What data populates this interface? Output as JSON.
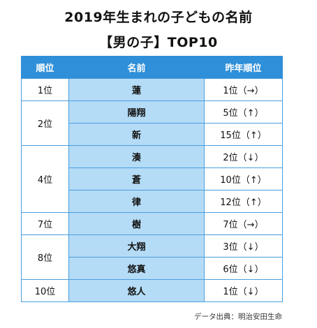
{
  "title_line1": "2019年生まれの子どもの名前",
  "title_line2": "【男の子】TOP10",
  "headers": {
    "rank": "順位",
    "name": "名前",
    "prev": "昨年順位"
  },
  "rows": [
    {
      "rank": "1位",
      "name": "蓮",
      "prev": "1位（→）"
    },
    {
      "rank": "2位",
      "name": "陽翔",
      "prev": "5位（↑）"
    },
    {
      "rank": "",
      "name": "新",
      "prev": "15位（↑）"
    },
    {
      "rank": "4位",
      "name": "湊",
      "prev": "2位（↓）"
    },
    {
      "rank": "",
      "name": "蒼",
      "prev": "10位（↑）"
    },
    {
      "rank": "",
      "name": "律",
      "prev": "12位（↑）"
    },
    {
      "rank": "7位",
      "name": "樹",
      "prev": "7位（→）"
    },
    {
      "rank": "8位",
      "name": "大翔",
      "prev": "3位（↓）"
    },
    {
      "rank": "",
      "name": "悠真",
      "prev": "6位（↓）"
    },
    {
      "rank": "10位",
      "name": "悠人",
      "prev": "1位（↓）"
    }
  ],
  "source": "データ出典：明治安田生命",
  "colors": {
    "header": "#2f8fd8",
    "name_column": "#b5dcf6",
    "border": "#4a9ede"
  }
}
